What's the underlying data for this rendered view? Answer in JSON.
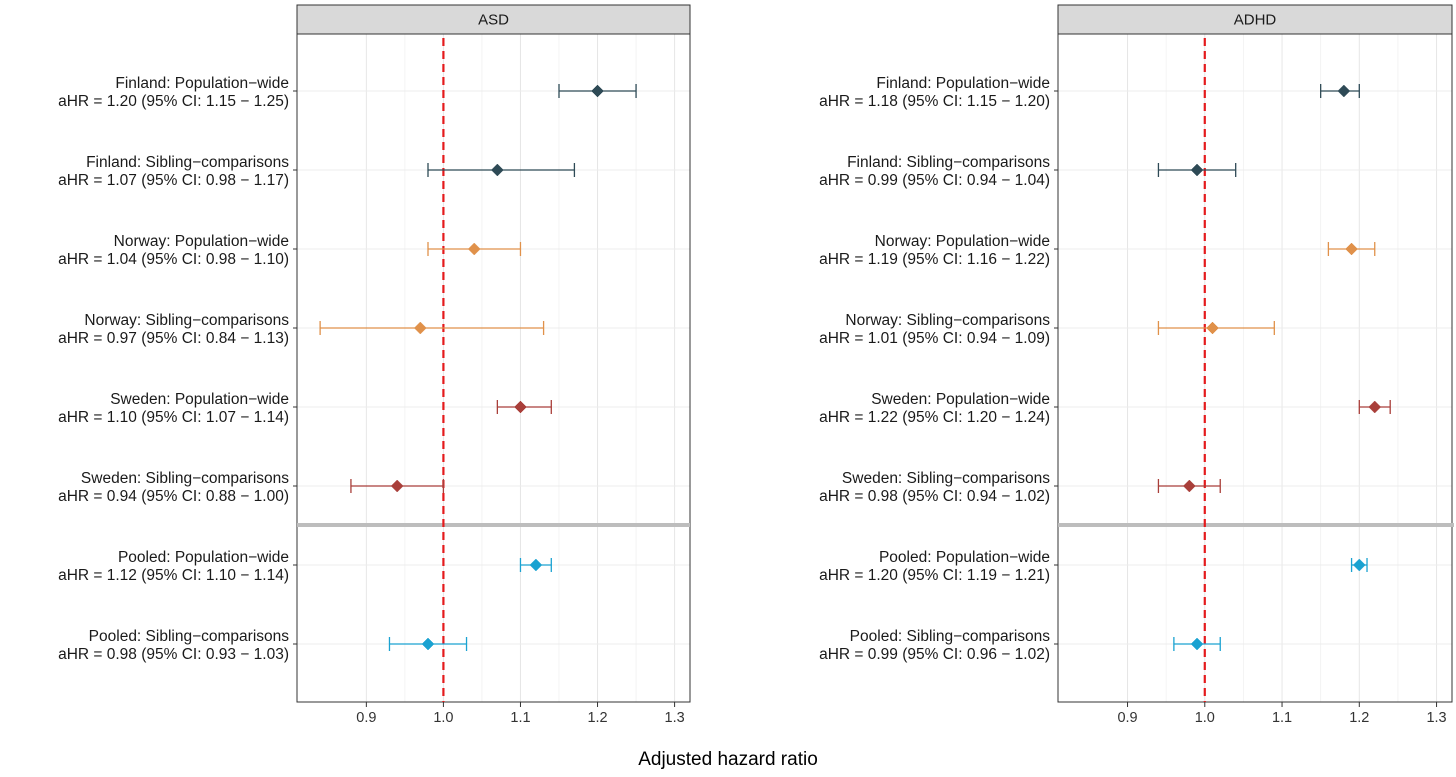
{
  "chart_data": {
    "type": "forest",
    "xlabel": "Adjusted hazard ratio",
    "xlim": [
      0.81,
      1.32
    ],
    "xticks": [
      0.9,
      1.0,
      1.1,
      1.2,
      1.3
    ],
    "xtick_labels": [
      "0.9",
      "1.0",
      "1.1",
      "1.2",
      "1.3"
    ],
    "reference_line": 1.0,
    "reference_line_color": "#e41a1c",
    "grid": true,
    "group_colors": {
      "Finland": "#2e4a56",
      "Norway": "#e0914a",
      "Sweden": "#a93f3a",
      "Pooled": "#1aa2d1"
    },
    "panels": [
      {
        "title": "ASD",
        "rows": [
          {
            "name": "Finland: Population−wide",
            "stat": "aHR = 1.20 (95% CI: 1.15 − 1.25)",
            "group": "Finland",
            "estimate": 1.2,
            "lower": 1.15,
            "upper": 1.25
          },
          {
            "name": "Finland: Sibling−comparisons",
            "stat": "aHR = 1.07 (95% CI: 0.98 − 1.17)",
            "group": "Finland",
            "estimate": 1.07,
            "lower": 0.98,
            "upper": 1.17
          },
          {
            "name": "Norway: Population−wide",
            "stat": "aHR = 1.04 (95% CI: 0.98 − 1.10)",
            "group": "Norway",
            "estimate": 1.04,
            "lower": 0.98,
            "upper": 1.1
          },
          {
            "name": "Norway: Sibling−comparisons",
            "stat": "aHR = 0.97 (95% CI: 0.84 − 1.13)",
            "group": "Norway",
            "estimate": 0.97,
            "lower": 0.84,
            "upper": 1.13
          },
          {
            "name": "Sweden: Population−wide",
            "stat": "aHR = 1.10 (95% CI: 1.07 − 1.14)",
            "group": "Sweden",
            "estimate": 1.1,
            "lower": 1.07,
            "upper": 1.14
          },
          {
            "name": "Sweden: Sibling−comparisons",
            "stat": "aHR = 0.94 (95% CI: 0.88 − 1.00)",
            "group": "Sweden",
            "estimate": 0.94,
            "lower": 0.88,
            "upper": 1.0
          },
          {
            "name": "Pooled: Population−wide",
            "stat": "aHR = 1.12 (95% CI: 1.10 − 1.14)",
            "group": "Pooled",
            "estimate": 1.12,
            "lower": 1.1,
            "upper": 1.14
          },
          {
            "name": "Pooled: Sibling−comparisons",
            "stat": "aHR = 0.98 (95% CI: 0.93 − 1.03)",
            "group": "Pooled",
            "estimate": 0.98,
            "lower": 0.93,
            "upper": 1.03
          }
        ]
      },
      {
        "title": "ADHD",
        "rows": [
          {
            "name": "Finland: Population−wide",
            "stat": "aHR = 1.18 (95% CI: 1.15 − 1.20)",
            "group": "Finland",
            "estimate": 1.18,
            "lower": 1.15,
            "upper": 1.2
          },
          {
            "name": "Finland: Sibling−comparisons",
            "stat": "aHR = 0.99 (95% CI: 0.94 − 1.04)",
            "group": "Finland",
            "estimate": 0.99,
            "lower": 0.94,
            "upper": 1.04
          },
          {
            "name": "Norway: Population−wide",
            "stat": "aHR = 1.19 (95% CI: 1.16 − 1.22)",
            "group": "Norway",
            "estimate": 1.19,
            "lower": 1.16,
            "upper": 1.22
          },
          {
            "name": "Norway: Sibling−comparisons",
            "stat": "aHR = 1.01 (95% CI: 0.94 − 1.09)",
            "group": "Norway",
            "estimate": 1.01,
            "lower": 0.94,
            "upper": 1.09
          },
          {
            "name": "Sweden: Population−wide",
            "stat": "aHR = 1.22 (95% CI: 1.20 − 1.24)",
            "group": "Sweden",
            "estimate": 1.22,
            "lower": 1.2,
            "upper": 1.24
          },
          {
            "name": "Sweden: Sibling−comparisons",
            "stat": "aHR = 0.98 (95% CI: 0.94 − 1.02)",
            "group": "Sweden",
            "estimate": 0.98,
            "lower": 0.94,
            "upper": 1.02
          },
          {
            "name": "Pooled: Population−wide",
            "stat": "aHR = 1.20 (95% CI: 1.19 − 1.21)",
            "group": "Pooled",
            "estimate": 1.2,
            "lower": 1.19,
            "upper": 1.21
          },
          {
            "name": "Pooled: Sibling−comparisons",
            "stat": "aHR = 0.99 (95% CI: 0.96 − 1.02)",
            "group": "Pooled",
            "estimate": 0.99,
            "lower": 0.96,
            "upper": 1.02
          }
        ]
      }
    ]
  }
}
